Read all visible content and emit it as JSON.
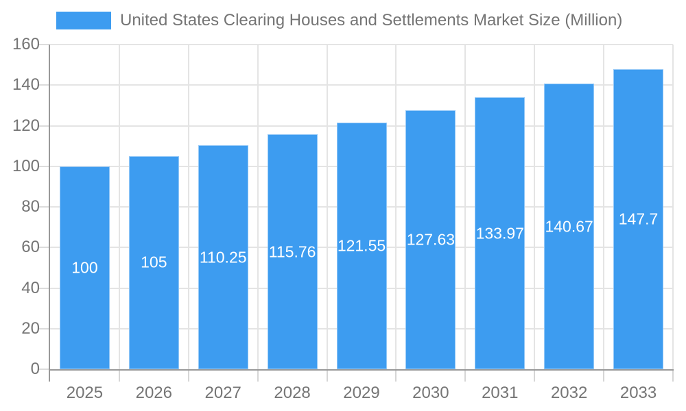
{
  "legend": {
    "label": "United States Clearing Houses and Settlements Market Size (Million)",
    "swatch_color": "#3d9cf0"
  },
  "chart_data": {
    "type": "bar",
    "title": "United States Clearing Houses and Settlements Market Size (Million)",
    "categories": [
      "2025",
      "2026",
      "2027",
      "2028",
      "2029",
      "2030",
      "2031",
      "2032",
      "2033"
    ],
    "values": [
      100,
      105,
      110.25,
      115.76,
      121.55,
      127.63,
      133.97,
      140.67,
      147.7
    ],
    "data_labels": [
      "100",
      "105",
      "110.25",
      "115.76",
      "121.55",
      "127.63",
      "133.97",
      "140.67",
      "147.7"
    ],
    "xlabel": "",
    "ylabel": "",
    "ylim": [
      0,
      160
    ],
    "yticks": [
      0,
      20,
      40,
      60,
      80,
      100,
      120,
      140,
      160
    ],
    "grid": true,
    "legend_position": "top-left",
    "bar_color": "#3d9cf0",
    "axis_color": "#999999",
    "grid_color": "#e4e4e4",
    "tick_label_color": "#757575",
    "data_label_color": "#ffffff"
  }
}
